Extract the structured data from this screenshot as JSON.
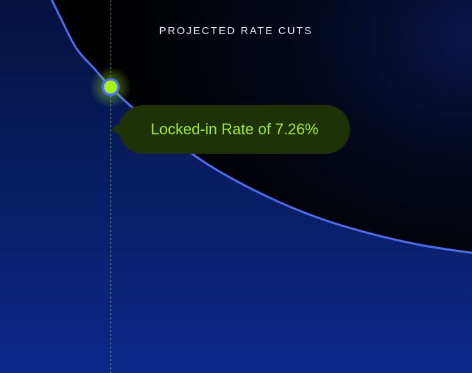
{
  "chart_data": {
    "type": "area",
    "title": "PROJECTED RATE CUTS",
    "xlabel": "",
    "ylabel": "",
    "grid": false,
    "legend": "none",
    "series": [
      {
        "values_note_free": true,
        "points": [
          [
            0.0,
            10.0
          ],
          [
            0.04,
            9.1
          ],
          [
            0.08,
            8.25
          ],
          [
            0.12,
            7.75
          ],
          [
            0.16,
            7.26
          ],
          [
            0.22,
            6.65
          ],
          [
            0.3,
            5.95
          ],
          [
            0.4,
            5.2
          ],
          [
            0.52,
            4.5
          ],
          [
            0.64,
            3.95
          ],
          [
            0.76,
            3.55
          ],
          [
            0.88,
            3.25
          ],
          [
            1.0,
            3.05
          ]
        ]
      }
    ],
    "highlight": {
      "x": 0.16,
      "y": 7.26,
      "label": "Locked-in Rate of 7.26%"
    },
    "xlim": [
      0,
      1
    ],
    "ylim": [
      0,
      10
    ]
  },
  "colors": {
    "background": "#000000",
    "area_top": "#04103a",
    "area_bottom": "#0c2a8c",
    "curve": "#4a6ff0",
    "marker": "#a6f01a",
    "marker_ring": "#4a6ff0",
    "guide_line": "#9ad04a",
    "callout_bg": "#1e3208",
    "callout_text": "#a2ee1c",
    "title": "#e6e9f2"
  }
}
